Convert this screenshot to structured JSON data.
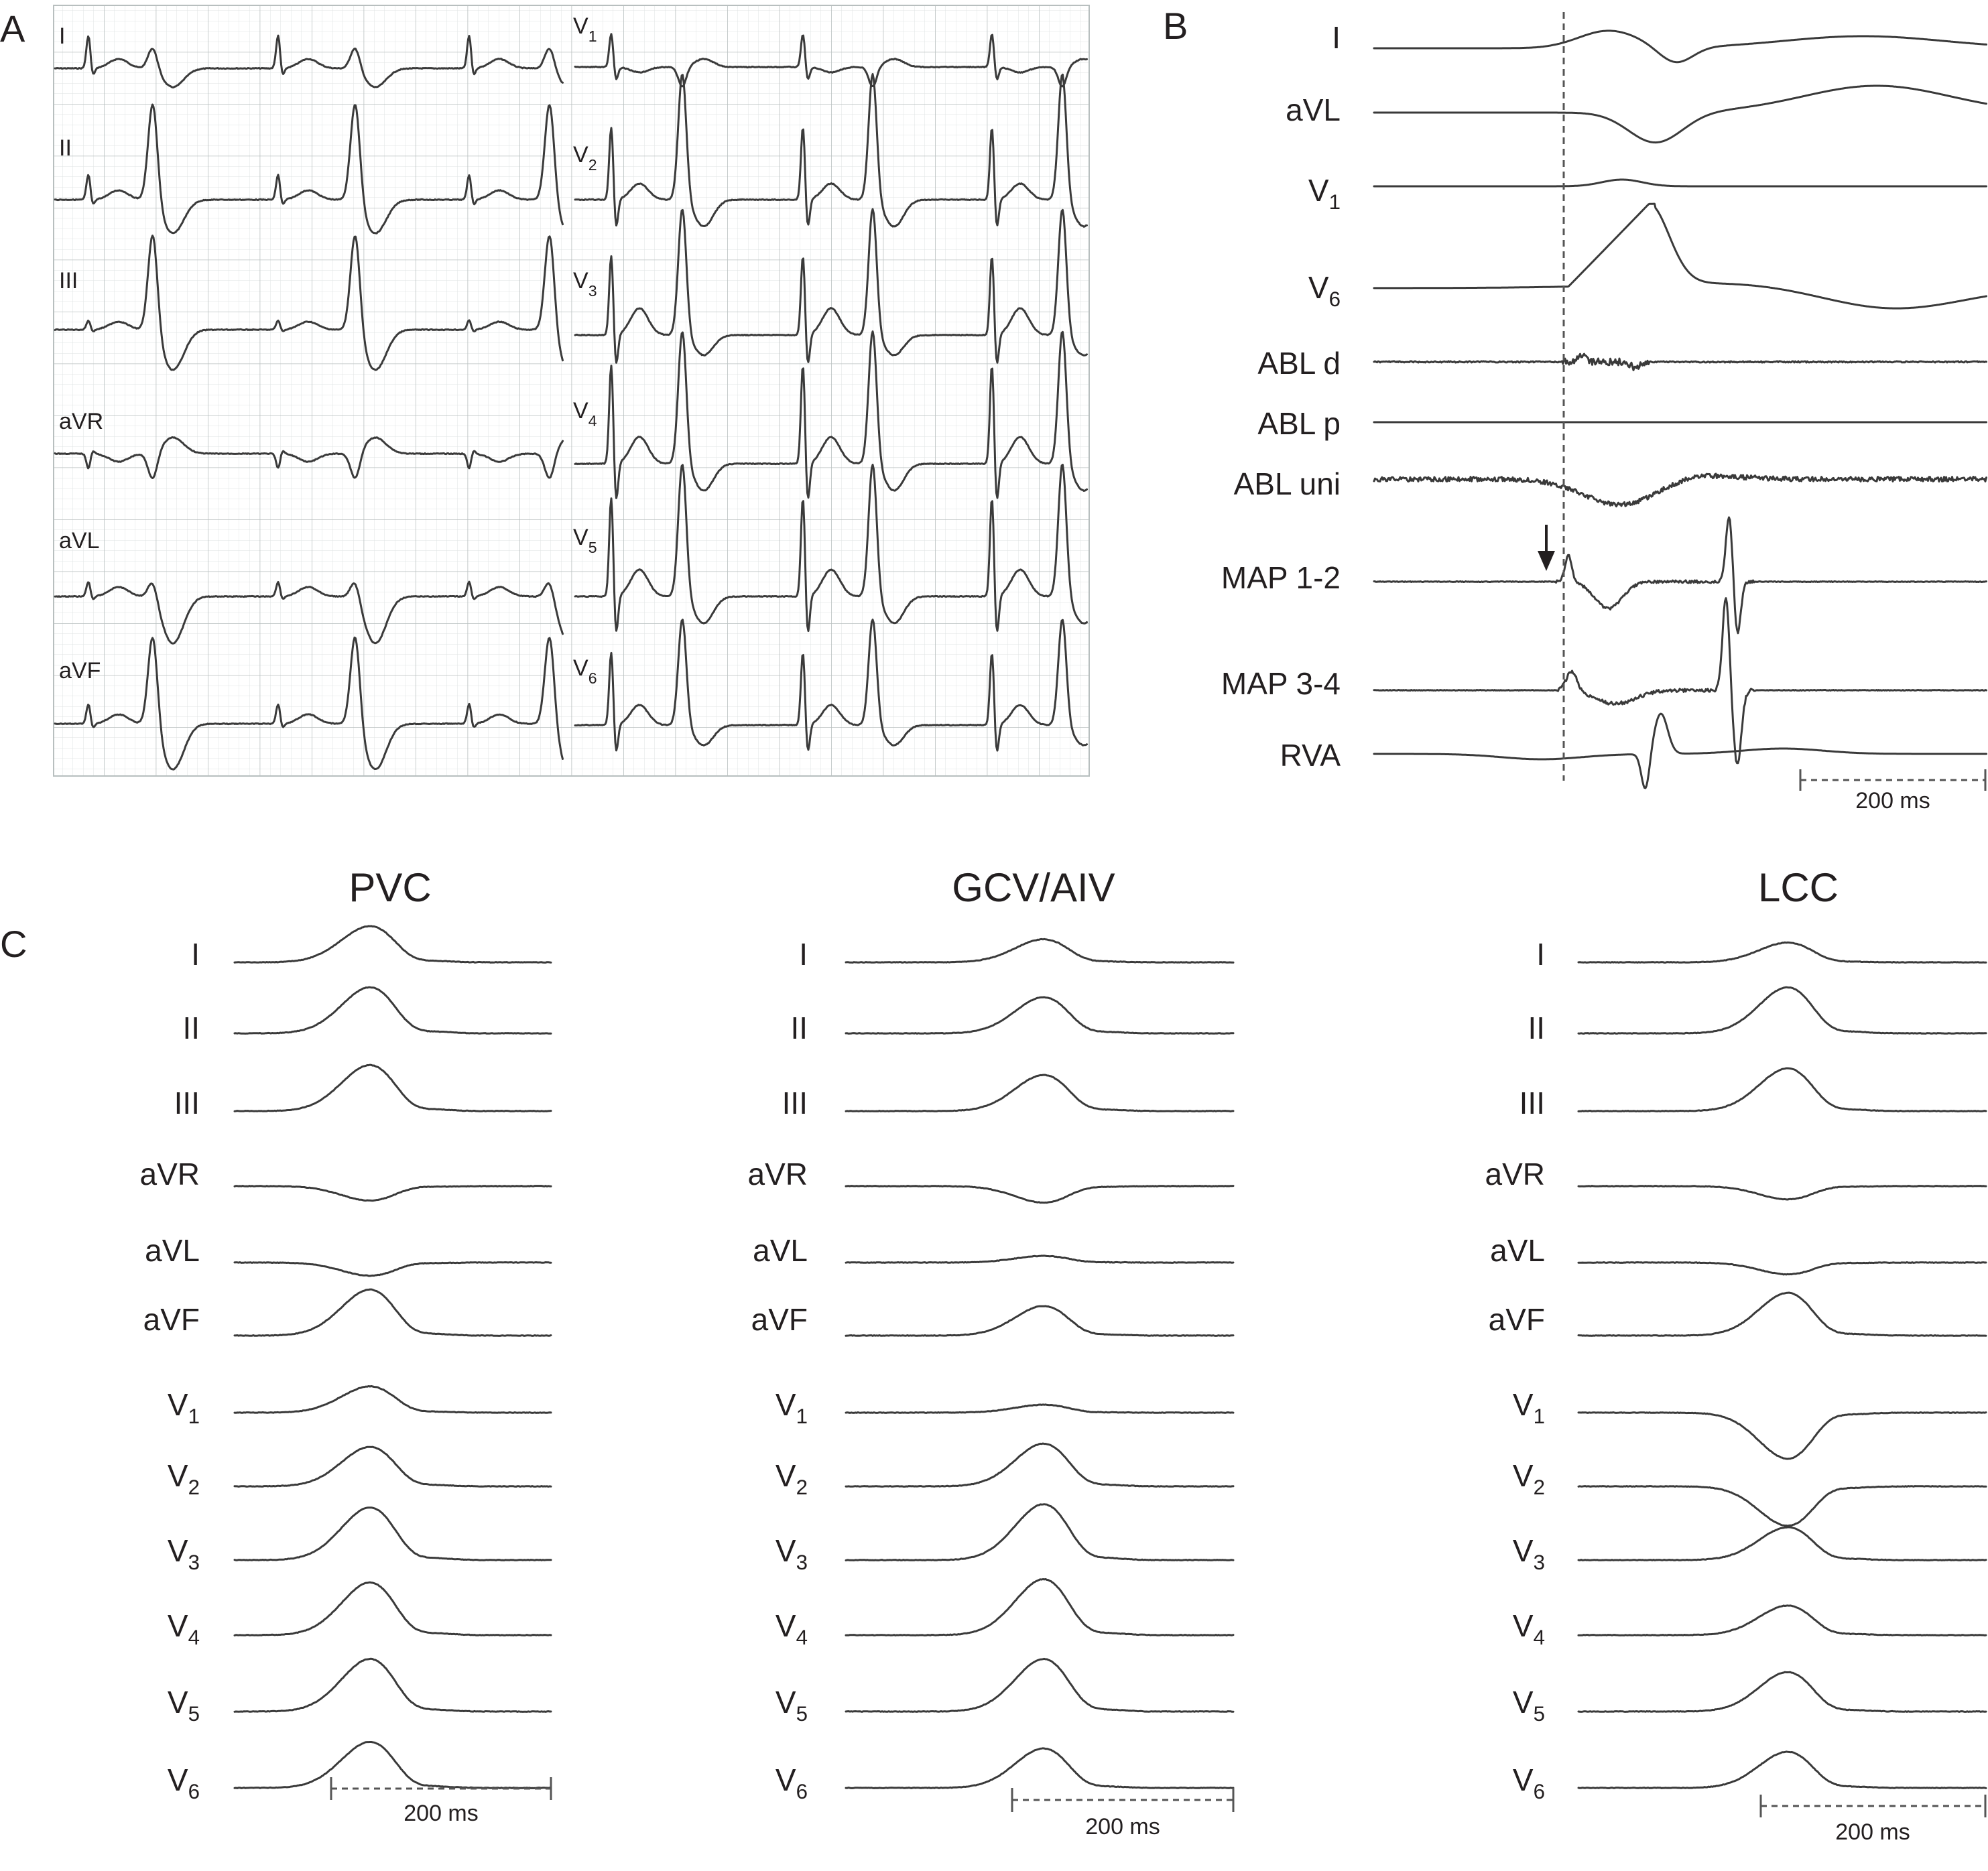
{
  "panels": {
    "A": {
      "letter": "A",
      "left_leads": [
        "I",
        "II",
        "III",
        "aVR",
        "aVL",
        "aVF"
      ],
      "right_leads": [
        {
          "base": "V",
          "sub": "1"
        },
        {
          "base": "V",
          "sub": "2"
        },
        {
          "base": "V",
          "sub": "3"
        },
        {
          "base": "V",
          "sub": "4"
        },
        {
          "base": "V",
          "sub": "5"
        },
        {
          "base": "V",
          "sub": "6"
        }
      ]
    },
    "B": {
      "letter": "B",
      "channels": [
        {
          "base": "I",
          "sub": ""
        },
        {
          "base": "aVL",
          "sub": ""
        },
        {
          "base": "V",
          "sub": "1"
        },
        {
          "base": "V",
          "sub": "6"
        },
        {
          "base": "ABL d",
          "sub": ""
        },
        {
          "base": "ABL p",
          "sub": ""
        },
        {
          "base": "ABL uni",
          "sub": ""
        },
        {
          "base": "MAP 1-2",
          "sub": ""
        },
        {
          "base": "MAP 3-4",
          "sub": ""
        },
        {
          "base": "RVA",
          "sub": ""
        }
      ],
      "scale_label": "200 ms",
      "arrow": "down-arrow"
    },
    "C": {
      "letter": "C",
      "columns": [
        {
          "title": "PVC",
          "scale_label": "200 ms"
        },
        {
          "title": "GCV/AIV",
          "scale_label": "200 ms"
        },
        {
          "title": "LCC",
          "scale_label": "200 ms"
        }
      ],
      "leads": [
        {
          "base": "I",
          "sub": ""
        },
        {
          "base": "II",
          "sub": ""
        },
        {
          "base": "III",
          "sub": ""
        },
        {
          "base": "aVR",
          "sub": ""
        },
        {
          "base": "aVL",
          "sub": ""
        },
        {
          "base": "aVF",
          "sub": ""
        },
        {
          "base": "V",
          "sub": "1"
        },
        {
          "base": "V",
          "sub": "2"
        },
        {
          "base": "V",
          "sub": "3"
        },
        {
          "base": "V",
          "sub": "4"
        },
        {
          "base": "V",
          "sub": "5"
        },
        {
          "base": "V",
          "sub": "6"
        }
      ]
    }
  },
  "colors": {
    "trace": "#3a3a3a",
    "grid_minor": "#dfe3e3",
    "grid_major": "#b8bfbf",
    "text": "#231f20"
  }
}
